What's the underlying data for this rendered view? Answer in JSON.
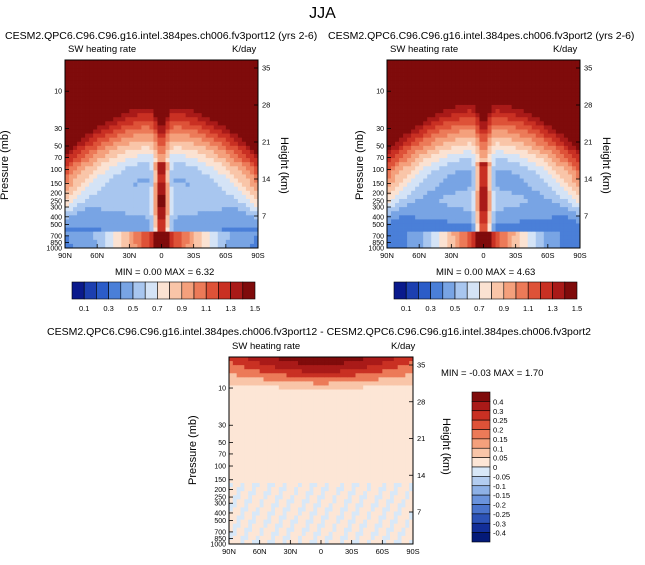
{
  "figure": {
    "title": "JJA"
  },
  "colors": {
    "frame": "#000000",
    "background": "#ffffff"
  },
  "chart_data": [
    {
      "type": "heatmap",
      "title": "CESM2.QPC6.C96.C96.g16.intel.384pes.ch006.fv3port12 (yrs 2-6)",
      "left_label": "SW heating rate",
      "right_label": "K/day",
      "xlabel": "",
      "ylabel": "Pressure (mb)",
      "y2label": "Height (km)",
      "x_ticks": [
        "90N",
        "60N",
        "30N",
        "0",
        "30S",
        "60S",
        "90S"
      ],
      "y_ticks": [
        "10",
        "30",
        "50",
        "70",
        "100",
        "150",
        "200",
        "250",
        "300",
        "400",
        "500",
        "700",
        "850",
        "1000"
      ],
      "y2_ticks": [
        "35",
        "28",
        "21",
        "14",
        "7"
      ],
      "stats": "MIN =  0.00  MAX =  6.32",
      "min": 0.0,
      "max": 6.32,
      "colorbar": {
        "levels": [
          0.1,
          0.2,
          0.3,
          0.4,
          0.5,
          0.6,
          0.7,
          0.8,
          0.9,
          1.0,
          1.1,
          1.2,
          1.3,
          1.4,
          1.5
        ],
        "labels": [
          "0.1",
          "0.3",
          "0.5",
          "0.7",
          "0.9",
          "1.1",
          "1.3",
          "1.5"
        ],
        "colors": [
          "#0a1a8c",
          "#1c3fb0",
          "#2b5cc8",
          "#4a7fd8",
          "#78a4e4",
          "#a8c6ef",
          "#d4e3f6",
          "#fbe2d2",
          "#f9c5a8",
          "#f4a07c",
          "#ec7a58",
          "#de5238",
          "#c93023",
          "#a91a18",
          "#7f0b0b"
        ]
      }
    },
    {
      "type": "heatmap",
      "title": "CESM2.QPC6.C96.C96.g16.intel.384pes.ch006.fv3port2 (yrs 2-6)",
      "left_label": "SW heating rate",
      "right_label": "K/day",
      "xlabel": "",
      "ylabel": "Pressure (mb)",
      "y2label": "Height (km)",
      "x_ticks": [
        "90N",
        "60N",
        "30N",
        "0",
        "30S",
        "60S",
        "90S"
      ],
      "y_ticks": [
        "10",
        "30",
        "50",
        "70",
        "100",
        "150",
        "200",
        "250",
        "300",
        "400",
        "500",
        "700",
        "850",
        "1000"
      ],
      "y2_ticks": [
        "35",
        "28",
        "21",
        "14",
        "7"
      ],
      "stats": "MIN =  0.00  MAX =  4.63",
      "min": 0.0,
      "max": 4.63,
      "colorbar": {
        "levels": [
          0.1,
          0.2,
          0.3,
          0.4,
          0.5,
          0.6,
          0.7,
          0.8,
          0.9,
          1.0,
          1.1,
          1.2,
          1.3,
          1.4,
          1.5
        ],
        "labels": [
          "0.1",
          "0.3",
          "0.5",
          "0.7",
          "0.9",
          "1.1",
          "1.3",
          "1.5"
        ],
        "colors": [
          "#0a1a8c",
          "#1c3fb0",
          "#2b5cc8",
          "#4a7fd8",
          "#78a4e4",
          "#a8c6ef",
          "#d4e3f6",
          "#fbe2d2",
          "#f9c5a8",
          "#f4a07c",
          "#ec7a58",
          "#de5238",
          "#c93023",
          "#a91a18",
          "#7f0b0b"
        ]
      }
    },
    {
      "type": "heatmap",
      "title": "CESM2.QPC6.C96.C96.g16.intel.384pes.ch006.fv3port12 - CESM2.QPC6.C96.C96.g16.intel.384pes.ch006.fv3port2",
      "left_label": "SW heating rate",
      "right_label": "K/day",
      "xlabel": "",
      "ylabel": "Pressure (mb)",
      "y2label": "Height (km)",
      "x_ticks": [
        "90N",
        "60N",
        "30N",
        "0",
        "30S",
        "60S",
        "90S"
      ],
      "y_ticks": [
        "10",
        "30",
        "50",
        "70",
        "100",
        "150",
        "200",
        "250",
        "300",
        "400",
        "500",
        "700",
        "850",
        "1000"
      ],
      "y2_ticks": [
        "35",
        "28",
        "21",
        "14",
        "7"
      ],
      "stats": "MIN = -0.03  MAX =  1.70",
      "min": -0.03,
      "max": 1.7,
      "colorbar": {
        "levels": [
          0.4,
          0.3,
          0.25,
          0.2,
          0.15,
          0.1,
          0.05,
          0,
          -0.05,
          -0.1,
          -0.15,
          -0.2,
          -0.25,
          -0.3,
          -0.4
        ],
        "labels": [
          "0.4",
          "0.3",
          "0.25",
          "0.2",
          "0.15",
          "0.1",
          "0.05",
          "0",
          "-0.05",
          "-0.1",
          "-0.15",
          "-0.2",
          "-0.25",
          "-0.3",
          "-0.4"
        ],
        "colors": [
          "#7f0b0b",
          "#a91a18",
          "#c93023",
          "#de5238",
          "#ec7a58",
          "#f4a07c",
          "#f9c5a8",
          "#fde6d6",
          "#d8e8f8",
          "#b3cdf0",
          "#8eb1e6",
          "#6a93dc",
          "#4a74cc",
          "#2c52b6",
          "#122e98",
          "#041a78"
        ]
      }
    }
  ]
}
